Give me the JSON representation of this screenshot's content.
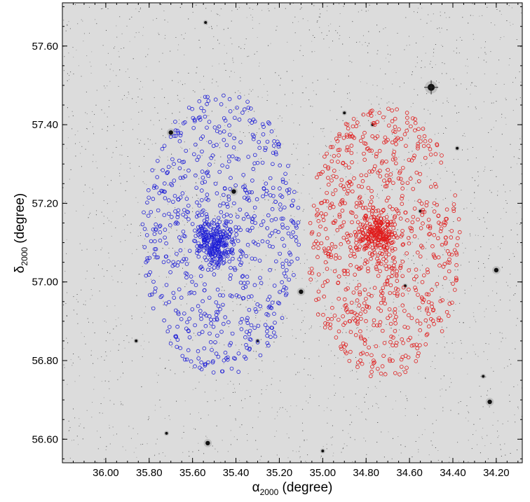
{
  "chart_data": {
    "type": "scatter",
    "xlabel": {
      "symbol": "α",
      "subscript": "2000",
      "unit": " (degree)"
    },
    "ylabel": {
      "symbol": "δ",
      "subscript": "2000",
      "unit": " (degree)"
    },
    "xlim": [
      36.2,
      34.08
    ],
    "ylim": [
      56.54,
      57.71
    ],
    "x_reversed": true,
    "x_ticks": [
      "36.00",
      "35.80",
      "35.60",
      "35.40",
      "35.20",
      "35.00",
      "34.80",
      "34.60",
      "34.40",
      "34.20"
    ],
    "y_ticks": [
      "56.60",
      "56.80",
      "57.00",
      "57.20",
      "57.40",
      "57.60"
    ],
    "background_image": "optical sky survey image (grey, stars as dark points)",
    "colors": {
      "series_blue": "#1f1fd6",
      "series_red": "#e01b1b",
      "background": "#dcdcdc",
      "axes": "#000000"
    },
    "series": [
      {
        "color": "#1f1fd6",
        "marker": "open-circle",
        "center": [
          35.47,
          57.12
        ],
        "core_center": [
          35.5,
          57.1
        ],
        "field_radius_deg": 0.36,
        "approx_count": 900
      },
      {
        "color": "#e01b1b",
        "marker": "open-circle",
        "center": [
          34.72,
          57.1
        ],
        "core_center": [
          34.75,
          57.12
        ],
        "field_radius_deg": 0.35,
        "approx_count": 950
      }
    ],
    "bright_stars": [
      {
        "x": 34.5,
        "y": 57.495,
        "size": 3
      },
      {
        "x": 35.41,
        "y": 57.23,
        "size": 2
      },
      {
        "x": 35.7,
        "y": 57.38,
        "size": 2
      },
      {
        "x": 35.1,
        "y": 56.975,
        "size": 2
      },
      {
        "x": 34.2,
        "y": 57.03,
        "size": 2
      },
      {
        "x": 35.53,
        "y": 56.59,
        "size": 2
      },
      {
        "x": 34.23,
        "y": 56.695,
        "size": 2
      },
      {
        "x": 35.86,
        "y": 56.85,
        "size": 1
      },
      {
        "x": 34.77,
        "y": 57.4,
        "size": 1
      },
      {
        "x": 34.55,
        "y": 57.18,
        "size": 1
      },
      {
        "x": 34.26,
        "y": 56.76,
        "size": 1
      },
      {
        "x": 35.72,
        "y": 56.615,
        "size": 1
      },
      {
        "x": 35.0,
        "y": 56.57,
        "size": 1
      },
      {
        "x": 34.62,
        "y": 56.99,
        "size": 1
      },
      {
        "x": 34.38,
        "y": 57.34,
        "size": 1
      },
      {
        "x": 35.54,
        "y": 57.66,
        "size": 1
      },
      {
        "x": 35.3,
        "y": 56.85,
        "size": 1
      },
      {
        "x": 34.9,
        "y": 57.43,
        "size": 1
      }
    ]
  }
}
